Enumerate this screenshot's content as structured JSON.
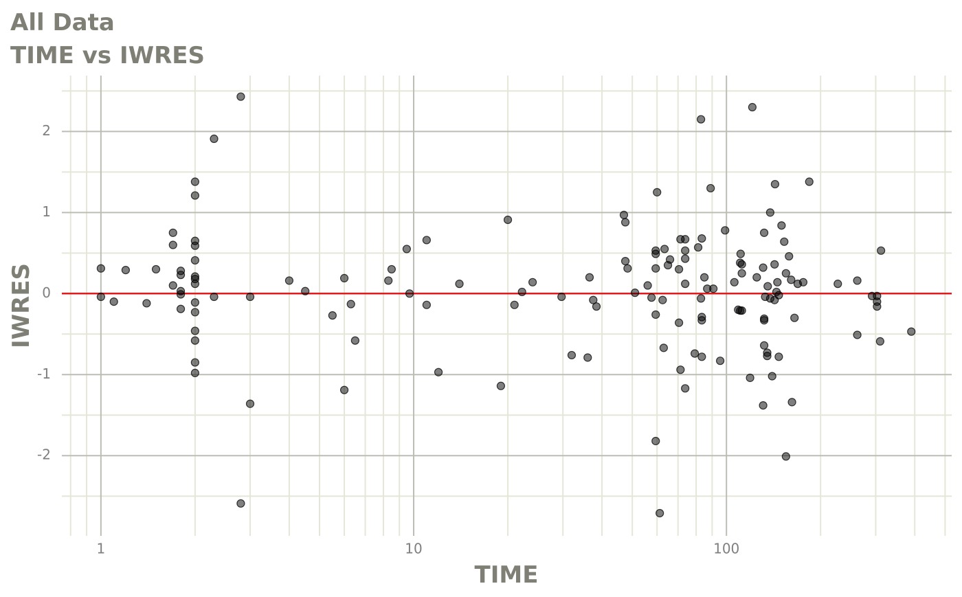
{
  "chart_data": {
    "type": "scatter",
    "title": "All Data",
    "subtitle": "TIME vs IWRES",
    "x_label": "TIME",
    "y_label": "IWRES",
    "log_x": true,
    "grid": true,
    "color": "#000000",
    "xlim": [
      0.75,
      525
    ],
    "ylim": [
      -2.99,
      2.69
    ],
    "xticks": [
      1,
      10,
      100
    ],
    "xminor": [
      0.8,
      0.9,
      2,
      3,
      4,
      5,
      6,
      7,
      8,
      9,
      20,
      30,
      40,
      50,
      60,
      70,
      80,
      90,
      200,
      300,
      400,
      500
    ],
    "yticks": [
      -2,
      -1,
      0,
      1,
      2
    ],
    "yminor": [
      -2.5,
      -1.5,
      -0.5,
      0.5,
      1.5,
      2.5
    ],
    "hline": {
      "value": 0,
      "color": "#e31a1c"
    },
    "x": [
      1,
      1,
      1.1,
      1.2,
      1.4,
      1.5,
      1.7,
      1.7,
      1.7,
      1.8,
      1.8,
      1.8,
      1.8,
      1.8,
      2,
      2,
      2,
      2,
      2,
      2,
      2,
      2,
      2,
      2,
      2,
      2,
      2,
      2,
      2.3,
      2.3,
      2.8,
      2.8,
      3,
      3,
      4,
      4.5,
      5.5,
      6,
      6,
      6.3,
      6.5,
      8.3,
      8.5,
      9.5,
      9.7,
      11,
      11,
      12,
      14,
      19,
      20,
      21,
      22.2,
      24,
      29.7,
      32,
      36,
      36.5,
      37.5,
      38.4,
      47,
      47.5,
      47.5,
      48.3,
      51,
      56,
      57.6,
      59.4,
      59.4,
      59.4,
      59.4,
      59.4,
      60,
      61.2,
      62.5,
      63,
      63.4,
      65,
      66,
      70.5,
      70.5,
      71.3,
      71.3,
      73.8,
      73.8,
      73.8,
      73.8,
      73.8,
      79.2,
      81.2,
      82.9,
      83.4,
      82.9,
      83.4,
      83.4,
      83.4,
      85,
      86.8,
      89,
      90.8,
      95.5,
      99,
      106,
      109,
      110.6,
      110.6,
      112,
      111,
      112,
      112,
      119,
      121,
      125,
      131,
      131,
      132,
      132,
      132,
      132,
      133,
      135,
      135,
      135.5,
      138,
      138,
      140,
      142.5,
      142.5,
      143,
      144.5,
      145.5,
      147,
      147,
      150,
      153,
      155,
      155,
      158.5,
      161,
      162,
      165,
      169,
      176,
      184,
      227,
      262,
      262,
      292,
      303,
      303,
      303,
      312,
      310,
      390
    ],
    "series": [
      {
        "name": "IWRES",
        "color": "#000000",
        "values": [
          0.31,
          -0.04,
          -0.1,
          0.29,
          -0.12,
          0.3,
          0.75,
          0.6,
          0.1,
          0.28,
          0.23,
          0.03,
          -0.01,
          -0.19,
          1.38,
          1.21,
          0.65,
          0.59,
          0.41,
          0.21,
          0.18,
          0.12,
          -0.11,
          -0.23,
          -0.46,
          -0.58,
          -0.85,
          -0.98,
          1.91,
          -0.04,
          2.43,
          -2.59,
          -0.04,
          -1.36,
          0.16,
          0.03,
          -0.27,
          0.19,
          -1.19,
          -0.13,
          -0.58,
          0.16,
          0.3,
          0.55,
          0,
          0.66,
          -0.14,
          -0.97,
          0.12,
          -1.14,
          0.91,
          -0.14,
          0.02,
          0.14,
          -0.04,
          -0.76,
          -0.79,
          0.2,
          -0.08,
          -0.16,
          0.97,
          0.88,
          0.4,
          0.31,
          0.01,
          0.1,
          -0.05,
          0.53,
          0.49,
          0.31,
          -0.26,
          -1.82,
          1.25,
          -2.71,
          -0.08,
          -0.67,
          0.55,
          0.35,
          0.42,
          0.3,
          -0.36,
          -0.94,
          0.67,
          0.67,
          0.53,
          0.43,
          0.12,
          -1.17,
          -0.74,
          0.57,
          2.15,
          0.68,
          -0.06,
          -0.29,
          -0.33,
          -0.78,
          0.2,
          0.06,
          1.3,
          0.06,
          -0.83,
          0.78,
          0.14,
          -0.2,
          0.38,
          -0.21,
          -0.21,
          0.49,
          0.36,
          0.25,
          -1.04,
          2.3,
          0.2,
          0.32,
          -1.38,
          0.75,
          -0.31,
          -0.33,
          -0.64,
          -0.04,
          -0.73,
          -0.77,
          0.09,
          1.0,
          -0.06,
          -1.02,
          -0.08,
          0.36,
          1.35,
          0.02,
          0.14,
          -0.02,
          -0.78,
          0.84,
          0.64,
          0.25,
          -2.01,
          0.46,
          0.17,
          -1.34,
          -0.3,
          0.12,
          0.14,
          1.38,
          0.12,
          0.16,
          -0.51,
          -0.03,
          -0.03,
          -0.1,
          -0.16,
          0.53,
          -0.59,
          -0.47
        ]
      }
    ]
  }
}
